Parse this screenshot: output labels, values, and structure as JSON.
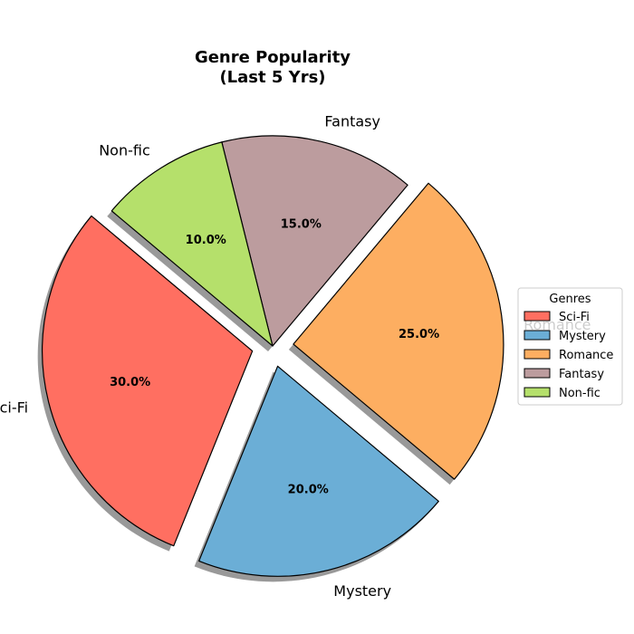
{
  "chart_data": {
    "type": "pie",
    "title_lines": [
      "Genre Popularity",
      "(Last 5 Yrs)"
    ],
    "categories": [
      "Sci-Fi",
      "Mystery",
      "Romance",
      "Fantasy",
      "Non-fic"
    ],
    "values": [
      30.0,
      20.0,
      25.0,
      15.0,
      10.0
    ],
    "percent_labels": [
      "30.0%",
      "20.0%",
      "25.0%",
      "15.0%",
      "10.0%"
    ],
    "colors": [
      "#ff6f61",
      "#6baed6",
      "#fdae61",
      "#bc9c9e",
      "#b5e06b"
    ],
    "exploded": [
      true,
      true,
      true,
      false,
      false
    ],
    "shadow": true,
    "legend": {
      "title": "Genres",
      "placement": "right",
      "entries": [
        "Sci-Fi",
        "Mystery",
        "Romance",
        "Fantasy",
        "Non-fic"
      ]
    }
  }
}
